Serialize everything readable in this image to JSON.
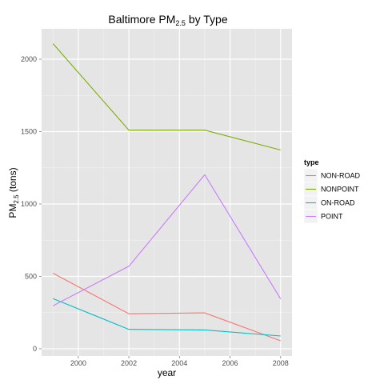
{
  "chart_data": {
    "type": "line",
    "title_main": "Baltimore PM",
    "title_sub": "2.5",
    "title_rest": " by Type",
    "xlabel": "year",
    "ylabel_main": "PM",
    "ylabel_sub": "2.5",
    "ylabel_rest": " (tons)",
    "x": [
      1999,
      2002,
      2005,
      2008
    ],
    "xlim": [
      1998.55,
      2008.45
    ],
    "ylim": [
      -50,
      2210
    ],
    "x_ticks": [
      2000,
      2002,
      2004,
      2006,
      2008
    ],
    "y_ticks": [
      0,
      500,
      1000,
      1500,
      2000
    ],
    "grid": true,
    "legend": {
      "title": "type",
      "placement": "right"
    },
    "series": [
      {
        "name": "NON-ROAD",
        "color": "#F8766D",
        "values": [
          522,
          242,
          248,
          55
        ]
      },
      {
        "name": "NONPOINT",
        "color": "#7CAE00",
        "values": [
          2108,
          1510,
          1510,
          1373
        ]
      },
      {
        "name": "ON-ROAD",
        "color": "#00BFC4",
        "values": [
          347,
          134,
          130,
          88
        ]
      },
      {
        "name": "POINT",
        "color": "#C77CFF",
        "values": [
          297,
          570,
          1202,
          344
        ]
      }
    ],
    "colors": {
      "panel_bg": "#E5E5E5",
      "grid_major": "#FFFFFF",
      "grid_minor": "#F2F2F2",
      "legend_key_bg": "#F2F2F2"
    }
  }
}
